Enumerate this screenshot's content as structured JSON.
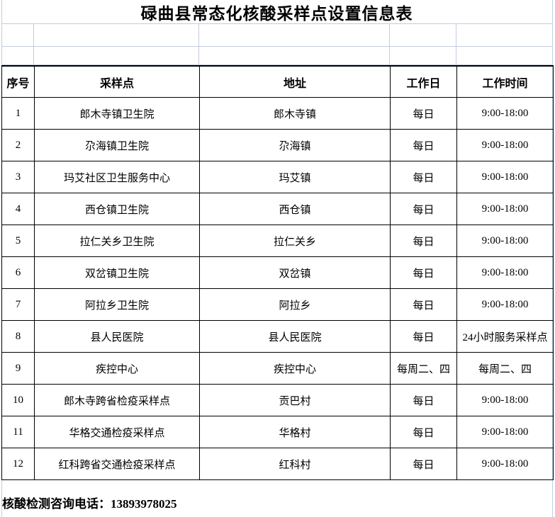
{
  "title": "碌曲县常态化核酸采样点设置信息表",
  "table": {
    "headers": [
      "序号",
      "采样点",
      "地址",
      "工作日",
      "工作时间"
    ],
    "rows": [
      [
        "1",
        "郎木寺镇卫生院",
        "郎木寺镇",
        "每日",
        "9:00-18:00"
      ],
      [
        "2",
        "尕海镇卫生院",
        "尕海镇",
        "每日",
        "9:00-18:00"
      ],
      [
        "3",
        "玛艾社区卫生服务中心",
        "玛艾镇",
        "每日",
        "9:00-18:00"
      ],
      [
        "4",
        "西仓镇卫生院",
        "西仓镇",
        "每日",
        "9:00-18:00"
      ],
      [
        "5",
        "拉仁关乡卫生院",
        "拉仁关乡",
        "每日",
        "9:00-18:00"
      ],
      [
        "6",
        "双岔镇卫生院",
        "双岔镇",
        "每日",
        "9:00-18:00"
      ],
      [
        "7",
        "阿拉乡卫生院",
        "阿拉乡",
        "每日",
        "9:00-18:00"
      ],
      [
        "8",
        "县人民医院",
        "县人民医院",
        "每日",
        "24小时服务采样点"
      ],
      [
        "9",
        "疾控中心",
        "疾控中心",
        "每周二、四",
        "每周二、四"
      ],
      [
        "10",
        "郎木寺跨省检疫采样点",
        "贡巴村",
        "每日",
        "9:00-18:00"
      ],
      [
        "11",
        "华格交通检疫采样点",
        "华格村",
        "每日",
        "9:00-18:00"
      ],
      [
        "12",
        "红科跨省交通检疫采样点",
        "红科村",
        "每日",
        "9:00-18:00"
      ]
    ]
  },
  "footer": {
    "label": "核酸检测咨询电话：",
    "phone": "13893978025"
  },
  "colors": {
    "gridline": "#c3ccde",
    "table_border": "#000000",
    "text": "#000000",
    "background": "#ffffff"
  }
}
